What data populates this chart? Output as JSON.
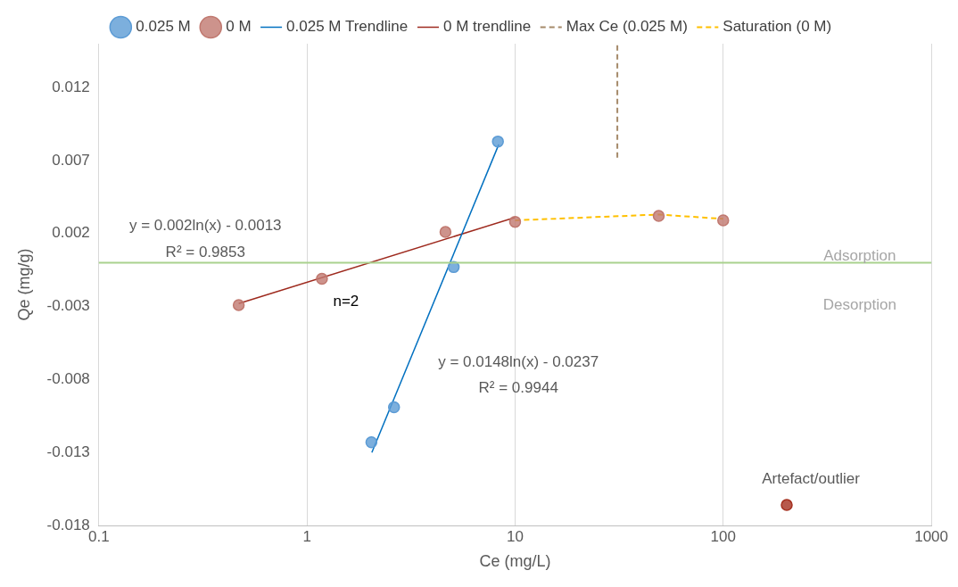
{
  "chart_data": {
    "type": "scatter",
    "xlabel": "Ce (mg/L)",
    "ylabel": "Qe (mg/g)",
    "log": "x",
    "grid": "x",
    "legend": "top",
    "xlim": [
      0.1,
      1000
    ],
    "xticks": [
      0.1,
      1,
      10,
      100,
      1000
    ],
    "ylim": [
      -0.018,
      0.015
    ],
    "yticks": [
      -0.018,
      -0.013,
      -0.008,
      -0.003,
      0.002,
      0.007,
      0.012
    ],
    "series": [
      {
        "name": "0.025 M",
        "type": "scatter",
        "marker": "circle",
        "color": "#5b9bd5",
        "x": [
          2.04,
          2.62,
          5.07,
          8.27
        ],
        "values": [
          -0.0123,
          -0.0099,
          -0.0003,
          0.0083
        ]
      },
      {
        "name": "0 M",
        "type": "scatter",
        "marker": "circle",
        "color": "#c0786f",
        "x": [
          0.47,
          1.18,
          4.63,
          10,
          49,
          100
        ],
        "values": [
          -0.0029,
          -0.0011,
          0.0021,
          0.0028,
          0.0032,
          0.0029
        ]
      },
      {
        "name": "0.025 M Trendline",
        "type": "line",
        "marker": "none",
        "color": "#0070c0",
        "line_style": "solid",
        "x": [
          2.05,
          8.35
        ],
        "values": [
          -0.013,
          0.0081
        ]
      },
      {
        "name": "0 M trendline",
        "type": "line",
        "marker": "none",
        "color": "#9e2a1e",
        "line_style": "solid",
        "x": [
          0.47,
          10
        ],
        "values": [
          -0.0028,
          0.0031
        ]
      },
      {
        "name": "Max Ce (0.025 M)",
        "type": "line",
        "marker": "none",
        "color": "#a58a6a",
        "line_style": "dashed",
        "x": [
          31,
          31
        ],
        "values": [
          0.0072,
          0.015
        ]
      },
      {
        "name": "Saturation (0 M)",
        "type": "line",
        "marker": "none",
        "color": "#ffc000",
        "line_style": "dashed",
        "x": [
          10,
          49,
          100
        ],
        "values": [
          0.0029,
          0.0033,
          0.003
        ]
      },
      {
        "type": "scatter",
        "marker": "circle",
        "color": "#a5301f",
        "x": [
          202
        ],
        "values": [
          -0.0166
        ]
      }
    ],
    "ref_lines": [
      {
        "axis": "y",
        "value": 0,
        "color": "#a9d18e"
      }
    ],
    "annotations": [
      "y = 0.002ln(x) - 0.0013",
      "R² = 0.9853",
      {
        "text": "n=2",
        "x": 1.18,
        "y": -0.0011
      },
      "y = 0.0148ln(x) - 0.0237",
      "R² = 0.9944",
      {
        "text": "Artefact/outlier",
        "x": 202,
        "y": -0.0166
      },
      "Adsorption",
      "Desorption"
    ]
  }
}
